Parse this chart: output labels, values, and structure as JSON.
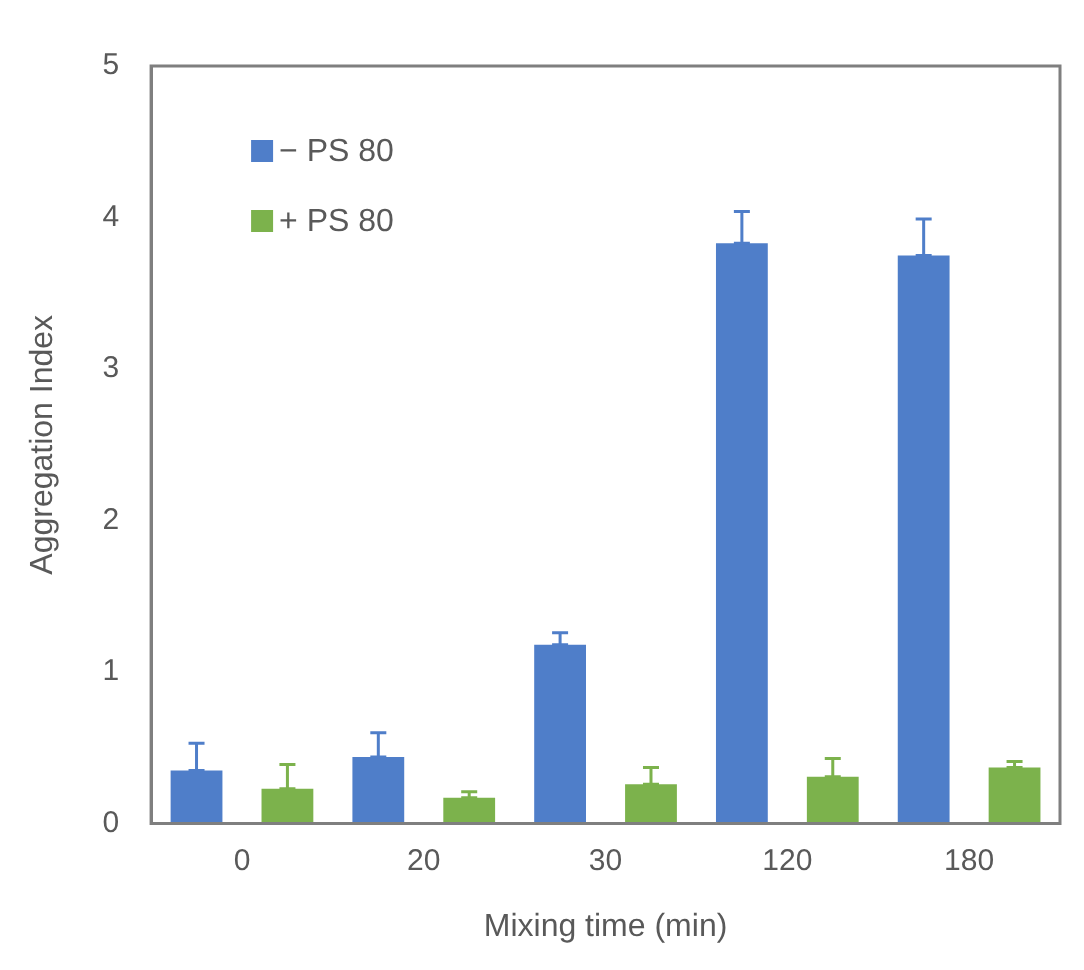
{
  "chart_data": {
    "type": "bar",
    "xlabel": "Mixing time (min)",
    "ylabel": "Aggregation Index",
    "categories": [
      "0",
      "20",
      "30",
      "120",
      "180"
    ],
    "series": [
      {
        "name": "− PS 80",
        "color": "#4f7ec9",
        "values": [
          0.35,
          0.44,
          1.18,
          3.83,
          3.75
        ],
        "errors": [
          [
            0.35,
            0.53
          ],
          [
            0.44,
            0.6
          ],
          [
            1.18,
            1.26
          ],
          [
            3.83,
            4.04
          ],
          [
            3.75,
            3.99
          ]
        ]
      },
      {
        "name": "+ PS 80",
        "color": "#7cb24c",
        "values": [
          0.23,
          0.17,
          0.26,
          0.31,
          0.37
        ],
        "errors": [
          [
            0.23,
            0.39
          ],
          [
            0.17,
            0.21
          ],
          [
            0.26,
            0.37
          ],
          [
            0.31,
            0.43
          ],
          [
            0.37,
            0.41
          ]
        ]
      }
    ],
    "ylim": [
      0,
      5
    ],
    "yticks": [
      0,
      1,
      2,
      3,
      4,
      5
    ],
    "grid": false,
    "legend": "top left"
  }
}
